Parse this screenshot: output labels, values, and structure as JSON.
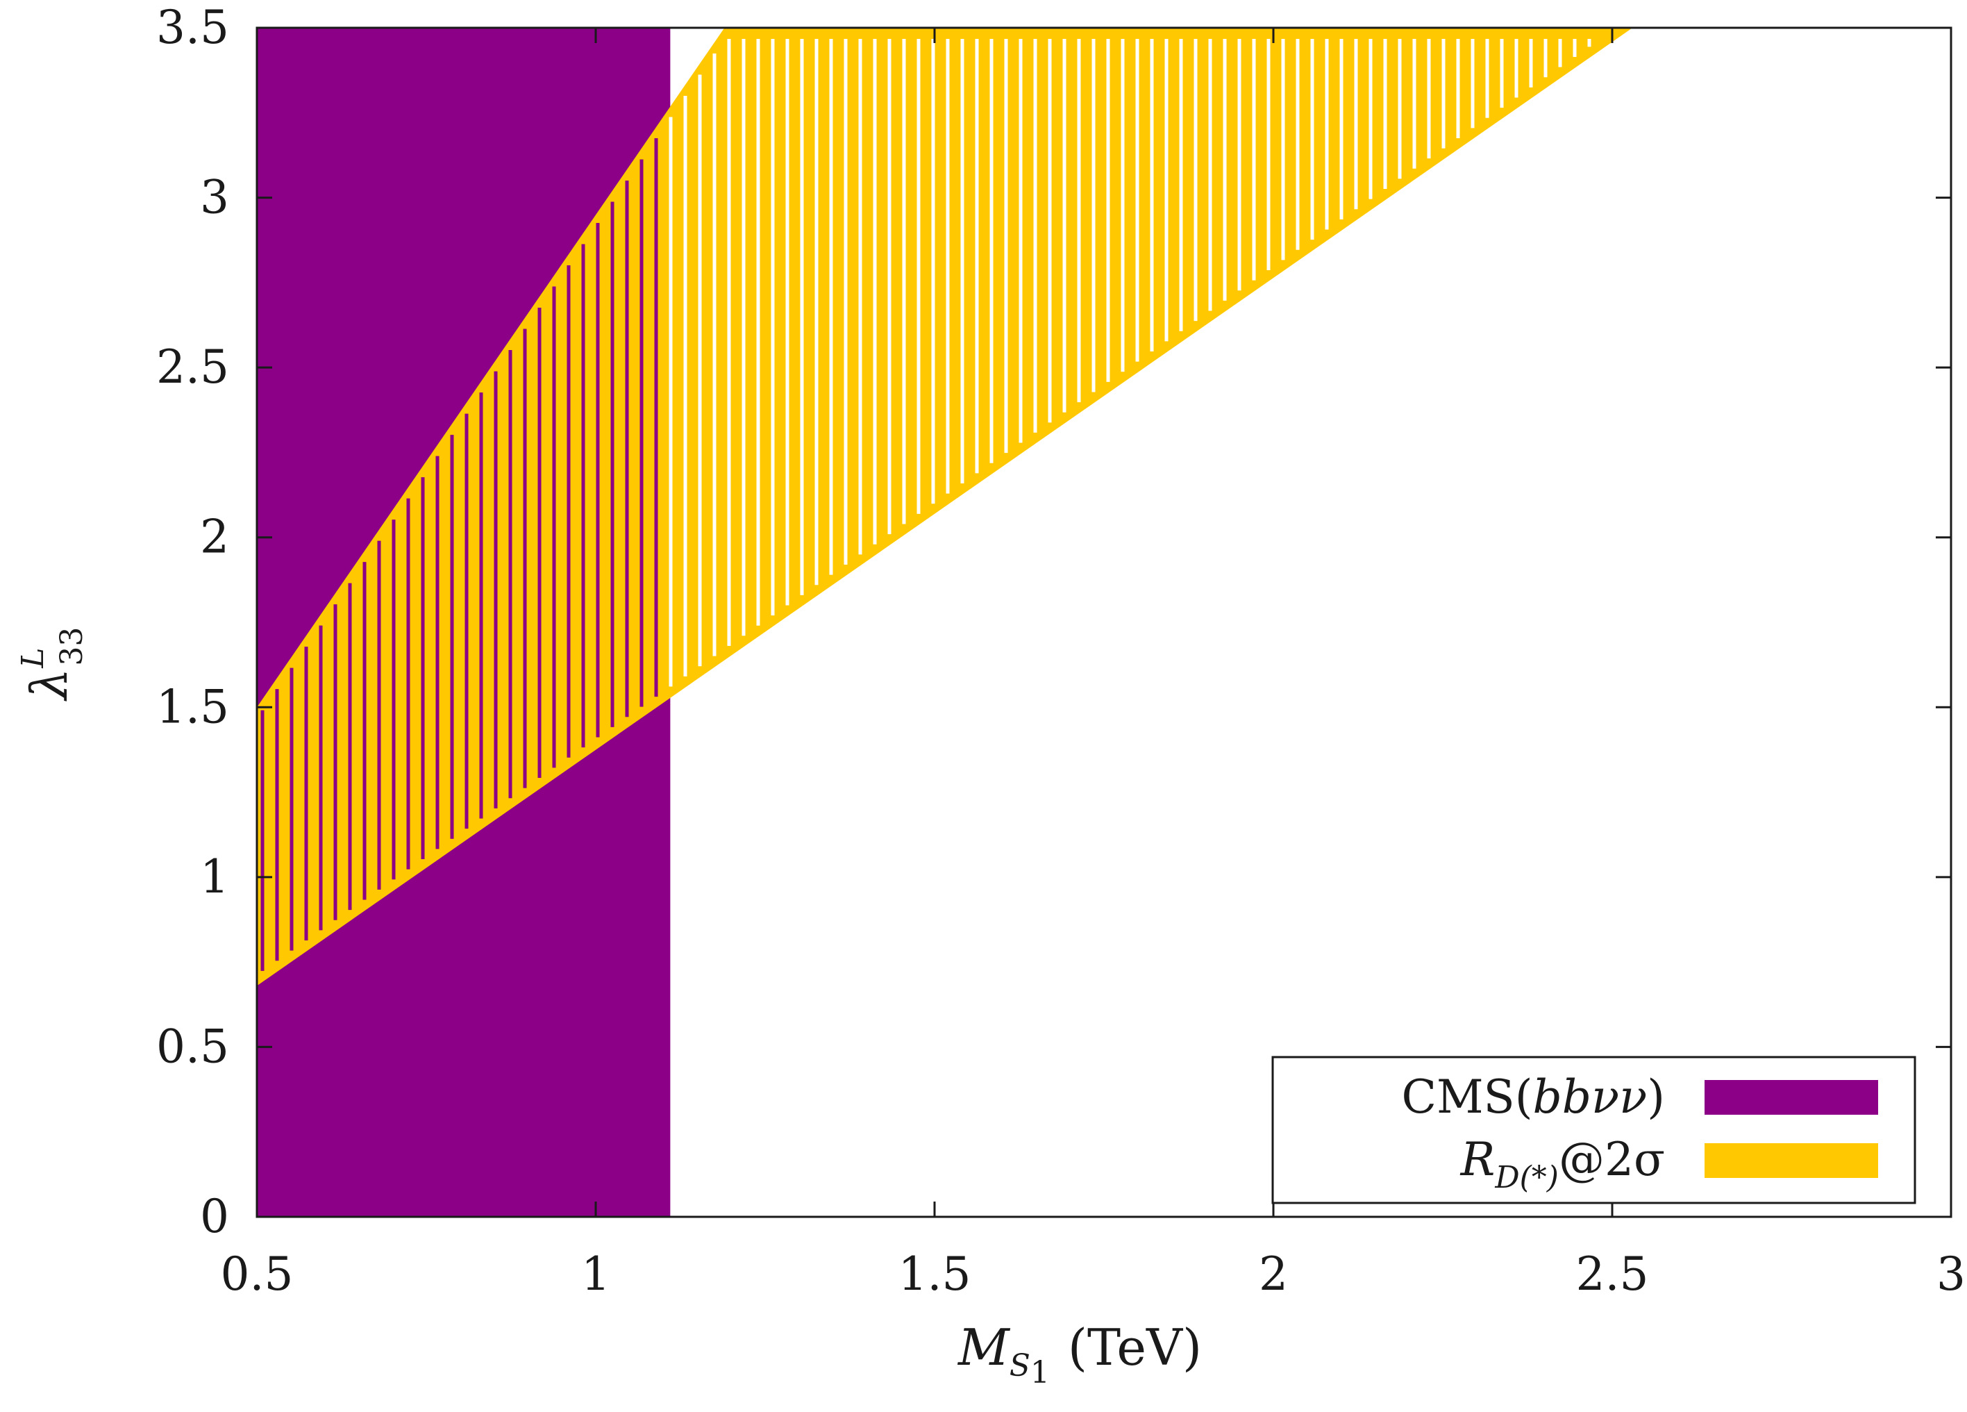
{
  "chart_data": {
    "type": "area",
    "title": "",
    "xlabel": {
      "main": "M",
      "sub": "S",
      "subsub": "1",
      "unit": "(TeV)"
    },
    "ylabel": {
      "main": "λ",
      "sup": "L",
      "sub": "33"
    },
    "xlim": [
      0.5,
      3.0
    ],
    "ylim": [
      0,
      3.5
    ],
    "xticks": [
      0.5,
      1,
      1.5,
      2,
      2.5,
      3
    ],
    "xtick_labels": [
      "0.5",
      "1",
      "1.5",
      "2",
      "2.5",
      "3"
    ],
    "yticks": [
      0,
      0.5,
      1,
      1.5,
      2,
      2.5,
      3,
      3.5
    ],
    "ytick_labels": [
      "0",
      "0.5",
      "1",
      "1.5",
      "2",
      "2.5",
      "3",
      "3.5"
    ],
    "grid": false,
    "legend_position": "bottom-right",
    "series": [
      {
        "name": "CMS(bbνν)",
        "name_parts": {
          "pre": "CMS(",
          "math": "bbνν",
          "post": ")"
        },
        "kind": "excluded_region",
        "color": "#8b0086",
        "x_range": [
          0.5,
          1.11
        ],
        "y_range": [
          0,
          3.5
        ]
      },
      {
        "name": "R_D(*)@2σ",
        "name_parts": {
          "main": "R",
          "sub": "D(*)",
          "post": "@2σ"
        },
        "kind": "allowed_band",
        "color": "#ffc800",
        "upper": {
          "x": [
            0.5,
            1.19
          ],
          "y": [
            1.5,
            3.5
          ]
        },
        "lower": {
          "x": [
            0.5,
            2.53
          ],
          "y": [
            0.68,
            3.5
          ]
        }
      }
    ]
  }
}
